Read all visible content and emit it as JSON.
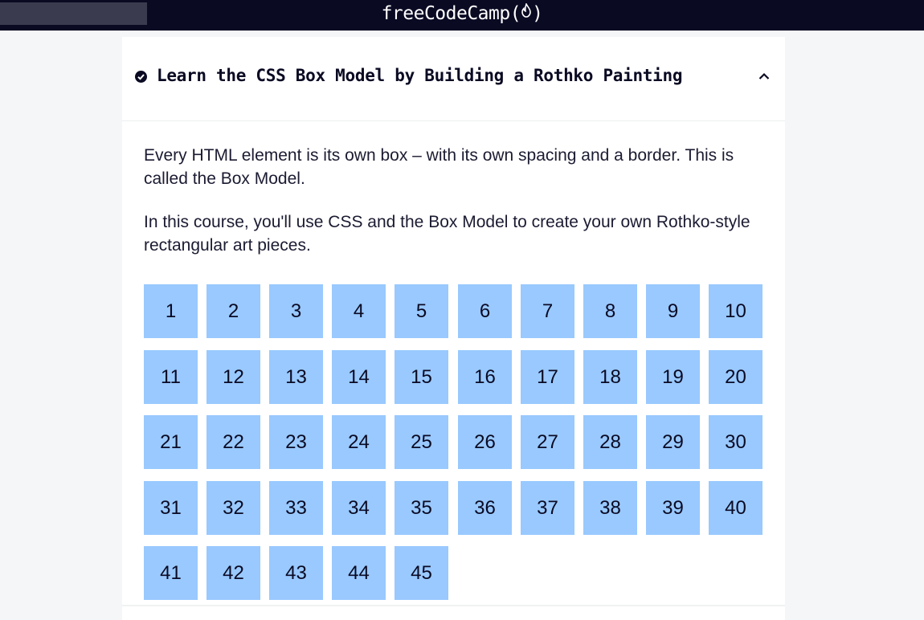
{
  "nav": {
    "logo_text": "freeCodeCamp(",
    "logo_flame": "🔥",
    "logo_close": ")"
  },
  "course": {
    "title": "Learn the CSS Box Model by Building a Rothko Painting",
    "completed": true,
    "expanded": true,
    "intro_paragraphs": [
      "Every HTML element is its own box – with its own spacing and a border. This is called the Box Model.",
      "In this course, you'll use CSS and the Box Model to create your own Rothko-style rectangular art pieces."
    ],
    "steps": [
      "1",
      "2",
      "3",
      "4",
      "5",
      "6",
      "7",
      "8",
      "9",
      "10",
      "11",
      "12",
      "13",
      "14",
      "15",
      "16",
      "17",
      "18",
      "19",
      "20",
      "21",
      "22",
      "23",
      "24",
      "25",
      "26",
      "27",
      "28",
      "29",
      "30",
      "31",
      "32",
      "33",
      "34",
      "35",
      "36",
      "37",
      "38",
      "39",
      "40",
      "41",
      "42",
      "43",
      "44",
      "45"
    ]
  },
  "colors": {
    "navbar": "#0a0a23",
    "step_tile": "#99c9ff",
    "text": "#1b1b32"
  },
  "icons": {
    "completed": "check-circle-icon",
    "collapse": "chevron-up-icon"
  }
}
